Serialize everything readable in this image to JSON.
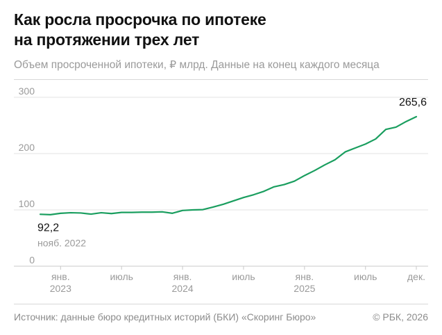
{
  "header": {
    "title_line1": "Как росла просрочка по ипотеке",
    "title_line2": "на протяжении трех лет",
    "subtitle": "Объем просроченной ипотеки, ₽ млрд. Данные на конец каждого месяца"
  },
  "footer": {
    "source": "Источник: данные бюро кредитных историй (БКИ) «Скоринг Бюро»",
    "copyright": "© РБК, 2026"
  },
  "chart_data": {
    "type": "line",
    "title": "Как росла просрочка по ипотеке на протяжении трех лет",
    "subtitle": "Объем просроченной ипотеки, ₽ млрд. Данные на конец каждого месяца",
    "xlabel": "",
    "ylabel": "",
    "ylim": [
      0,
      300
    ],
    "yticks": [
      0,
      100,
      200,
      300
    ],
    "grid": "horizontal",
    "legend": "none",
    "line_color": "#1a9e5f",
    "xticks": [
      {
        "month_index": 2,
        "label": "янв.",
        "label2": "2023"
      },
      {
        "month_index": 8,
        "label": "июль",
        "label2": ""
      },
      {
        "month_index": 14,
        "label": "янв.",
        "label2": "2024"
      },
      {
        "month_index": 20,
        "label": "июль",
        "label2": ""
      },
      {
        "month_index": 26,
        "label": "янв.",
        "label2": "2025"
      },
      {
        "month_index": 32,
        "label": "июль",
        "label2": ""
      },
      {
        "month_index": 37,
        "label": "дек.",
        "label2": ""
      }
    ],
    "x": [
      "нояб. 2022",
      "дек. 2022",
      "янв. 2023",
      "февр. 2023",
      "март 2023",
      "апр. 2023",
      "май 2023",
      "июнь 2023",
      "июль 2023",
      "авг. 2023",
      "сент. 2023",
      "окт. 2023",
      "нояб. 2023",
      "дек. 2023",
      "янв. 2024",
      "февр. 2024",
      "март 2024",
      "апр. 2024",
      "май 2024",
      "июнь 2024",
      "июль 2024",
      "авг. 2024",
      "сент. 2024",
      "окт. 2024",
      "нояб. 2024",
      "дек. 2024",
      "янв. 2025",
      "февр. 2025",
      "март 2025",
      "апр. 2025",
      "май 2025",
      "июнь 2025",
      "июль 2025",
      "авг. 2025",
      "сент. 2025",
      "окт. 2025",
      "нояб. 2025",
      "дек. 2025"
    ],
    "values": [
      92.2,
      91.5,
      94,
      95,
      94.5,
      92.5,
      95,
      93.5,
      95.5,
      95.5,
      96,
      96,
      96.5,
      94,
      99,
      100,
      100.5,
      105,
      110,
      116,
      122,
      127,
      133,
      141,
      145,
      151,
      161,
      170,
      180,
      189,
      203,
      210,
      217,
      226,
      243,
      247,
      257,
      265.6
    ],
    "annotations": [
      {
        "month_index": 0,
        "value_label": "92,2",
        "date_label": "нояб. 2022"
      },
      {
        "month_index": 37,
        "value_label": "265,6",
        "date_label": ""
      }
    ]
  }
}
